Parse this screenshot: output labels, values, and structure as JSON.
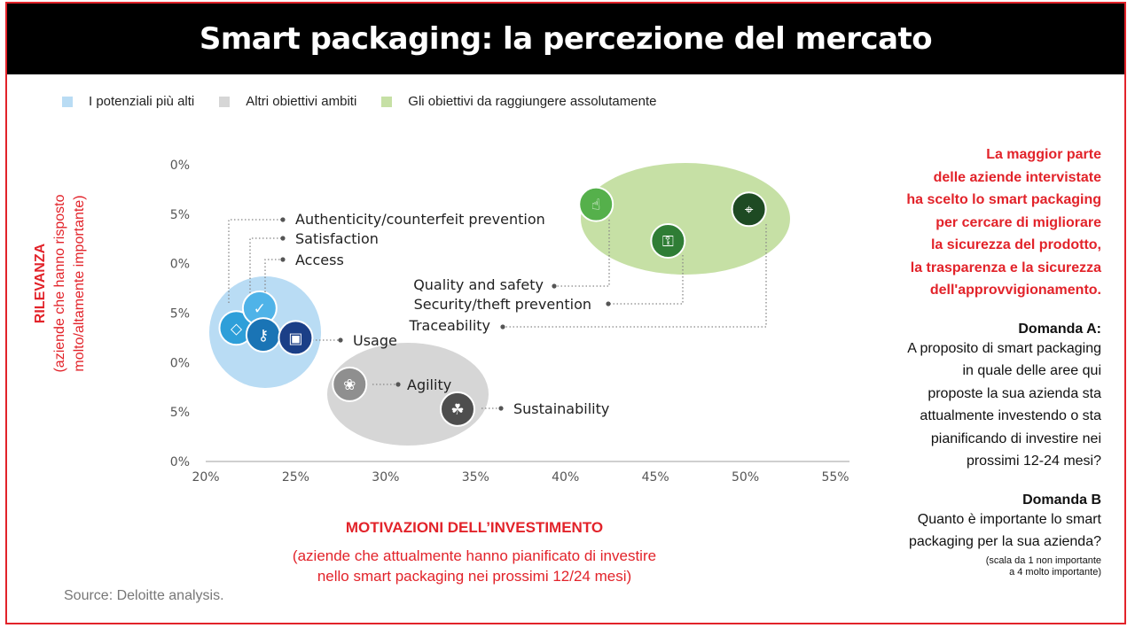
{
  "header": {
    "title": "Smart packaging: la percezione del mercato"
  },
  "legend": [
    {
      "label": "I potenziali più alti",
      "color": "#b9dcf4"
    },
    {
      "label": "Altri obiettivi ambiti",
      "color": "#d6d6d6"
    },
    {
      "label": "Gli obiettivi da raggiungere assolutamente",
      "color": "#c6e0a5"
    }
  ],
  "y_axis": {
    "title": "RILEVANZA",
    "subtitle_line1": "(aziende che hanno risposto",
    "subtitle_line2": "molto/altamente importante)"
  },
  "x_axis": {
    "title": "MOTIVAZIONI DELL’INVESTIMENTO",
    "subtitle_line1": "(aziende che attualmente hanno pianificato di investire",
    "subtitle_line2": "nello smart packaging nei prossimi 12/24 mesi)"
  },
  "source": "Source: Deloitte analysis.",
  "right_panel": {
    "lead": [
      "La maggior parte",
      "delle aziende intervistate",
      "ha scelto lo smart packaging",
      "per cercare di migliorare",
      "la sicurezza del prodotto,",
      "la trasparenza e la sicurezza",
      "dell'approvvigionamento."
    ],
    "q_a_title": "Domanda A:",
    "q_a_body": [
      "A proposito di smart packaging",
      "in quale delle aree qui",
      "proposte la sua azienda sta",
      "attualmente investendo o sta",
      "pianificando di investire nei",
      "prossimi 12-24 mesi?"
    ],
    "q_b_title": "Domanda B",
    "q_b_body": [
      "Quanto è importante lo smart",
      "packaging per la sua azienda?"
    ],
    "q_b_note": [
      "(scala da 1 non importante",
      "a 4 molto importante)"
    ]
  },
  "chart_data": {
    "type": "scatter",
    "x_ticks": [
      "20%",
      "25%",
      "30%",
      "35%",
      "40%",
      "45%",
      "50%",
      "55%"
    ],
    "y_ticks": [
      "0%",
      "5%",
      "0%",
      "5%",
      "0%",
      "5%",
      "0%"
    ],
    "xlim": [
      20,
      55
    ],
    "ylim": [
      0,
      30
    ],
    "groups": [
      {
        "name": "I potenziali più alti",
        "color": "#b9dcf4",
        "members": [
          "Authenticity/counterfeit prevention",
          "Satisfaction",
          "Access",
          "Usage"
        ]
      },
      {
        "name": "Altri obiettivi ambiti",
        "color": "#d6d6d6",
        "members": [
          "Agility",
          "Sustainability"
        ]
      },
      {
        "name": "Gli obiettivi da raggiungere assolutamente",
        "color": "#c6e0a5",
        "members": [
          "Quality and safety",
          "Security/theft prevention",
          "Traceability"
        ]
      }
    ],
    "points": [
      {
        "label": "Authenticity/counterfeit prevention",
        "x": 21.7,
        "y": 13.5,
        "icon": "tag-icon",
        "color": "#2e9fd9"
      },
      {
        "label": "Satisfaction",
        "x": 23.0,
        "y": 15.5,
        "icon": "check-icon",
        "color": "#4fb3e8"
      },
      {
        "label": "Access",
        "x": 23.2,
        "y": 12.8,
        "icon": "key-icon",
        "color": "#1a74b5"
      },
      {
        "label": "Usage",
        "x": 25.0,
        "y": 12.5,
        "icon": "box-icon",
        "color": "#1b3f87"
      },
      {
        "label": "Agility",
        "x": 28.0,
        "y": 7.8,
        "icon": "rabbit-icon",
        "color": "#8f8f8f"
      },
      {
        "label": "Sustainability",
        "x": 34.0,
        "y": 5.3,
        "icon": "sprout-icon",
        "color": "#4e4e4e"
      },
      {
        "label": "Quality and safety",
        "x": 41.7,
        "y": 26.0,
        "icon": "thumbs-up-icon",
        "color": "#55b04b"
      },
      {
        "label": "Security/theft prevention",
        "x": 45.7,
        "y": 22.3,
        "icon": "lock-icon",
        "color": "#2f7d35"
      },
      {
        "label": "Traceability",
        "x": 50.2,
        "y": 25.5,
        "icon": "compass-icon",
        "color": "#1e4a23"
      }
    ]
  }
}
